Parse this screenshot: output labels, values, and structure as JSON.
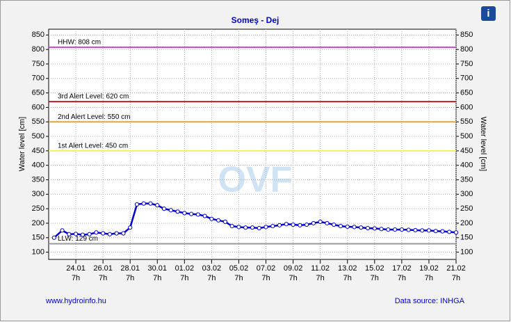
{
  "chart_data": {
    "type": "line",
    "title": "Someş - Dej",
    "ylabel": "Water level [cm]",
    "y2label": "Water level [cm]",
    "watermark": "OVF",
    "footer_left": "www.hydroinfo.hu",
    "footer_right": "Data source: INHGA",
    "info_icon": "i",
    "grid": true,
    "xlim": [
      0,
      30
    ],
    "ylim": [
      75,
      870
    ],
    "yticks": [
      100,
      150,
      200,
      250,
      300,
      350,
      400,
      450,
      500,
      550,
      600,
      650,
      700,
      750,
      800,
      850
    ],
    "y2lim": [
      75,
      870
    ],
    "y2ticks": [
      100,
      150,
      200,
      250,
      300,
      350,
      400,
      450,
      500,
      550,
      600,
      650,
      700,
      750,
      800,
      850
    ],
    "xticks": [
      {
        "value": 2,
        "label": "24.01"
      },
      {
        "value": 4,
        "label": "26.01"
      },
      {
        "value": 6,
        "label": "28.01"
      },
      {
        "value": 8,
        "label": "30.01"
      },
      {
        "value": 10,
        "label": "01.02"
      },
      {
        "value": 12,
        "label": "03.02"
      },
      {
        "value": 14,
        "label": "05.02"
      },
      {
        "value": 16,
        "label": "07.02"
      },
      {
        "value": 18,
        "label": "09.02"
      },
      {
        "value": 20,
        "label": "11.02"
      },
      {
        "value": 22,
        "label": "13.02"
      },
      {
        "value": 24,
        "label": "15.02"
      },
      {
        "value": 26,
        "label": "17.02"
      },
      {
        "value": 28,
        "label": "19.02"
      },
      {
        "value": 30,
        "label": "21.02"
      }
    ],
    "xtick_sublabel": "7h",
    "levels": [
      {
        "label": "HHW: 808 cm",
        "value": 808,
        "color": "#cc44cc"
      },
      {
        "label": "3rd Alert Level: 620 cm",
        "value": 620,
        "color": "#b22222"
      },
      {
        "label": "2nd Alert Level: 550 cm",
        "value": 550,
        "color": "#f0a030"
      },
      {
        "label": "1st Alert Level: 450 cm",
        "value": 450,
        "color": "#f0f060"
      },
      {
        "label": "LLW: 129 cm",
        "value": 129,
        "color": "#999999"
      }
    ],
    "series": [
      {
        "name": "Water level",
        "color": "#0000cc",
        "x": [
          0.4,
          1,
          1.5,
          2,
          2.5,
          3,
          3.5,
          4,
          4.5,
          5,
          5.5,
          6,
          6.5,
          7,
          7.5,
          8,
          8.5,
          9,
          9.5,
          10,
          10.5,
          11,
          11.5,
          12,
          12.5,
          13,
          13.5,
          14,
          14.5,
          15,
          15.5,
          16,
          16.5,
          17,
          17.5,
          18,
          18.5,
          19,
          19.5,
          20,
          20.5,
          21,
          21.5,
          22,
          22.5,
          23,
          23.5,
          24,
          24.5,
          25,
          25.5,
          26,
          26.5,
          27,
          27.5,
          28,
          28.5,
          29,
          29.5,
          30
        ],
        "values": [
          150,
          175,
          162,
          163,
          160,
          162,
          168,
          165,
          162,
          165,
          165,
          185,
          265,
          268,
          268,
          262,
          250,
          245,
          240,
          235,
          232,
          230,
          225,
          215,
          210,
          205,
          190,
          187,
          185,
          185,
          183,
          187,
          190,
          193,
          197,
          195,
          193,
          195,
          200,
          205,
          200,
          195,
          190,
          188,
          187,
          185,
          183,
          182,
          180,
          178,
          178,
          178,
          177,
          176,
          175,
          175,
          173,
          172,
          170,
          168
        ]
      }
    ]
  }
}
